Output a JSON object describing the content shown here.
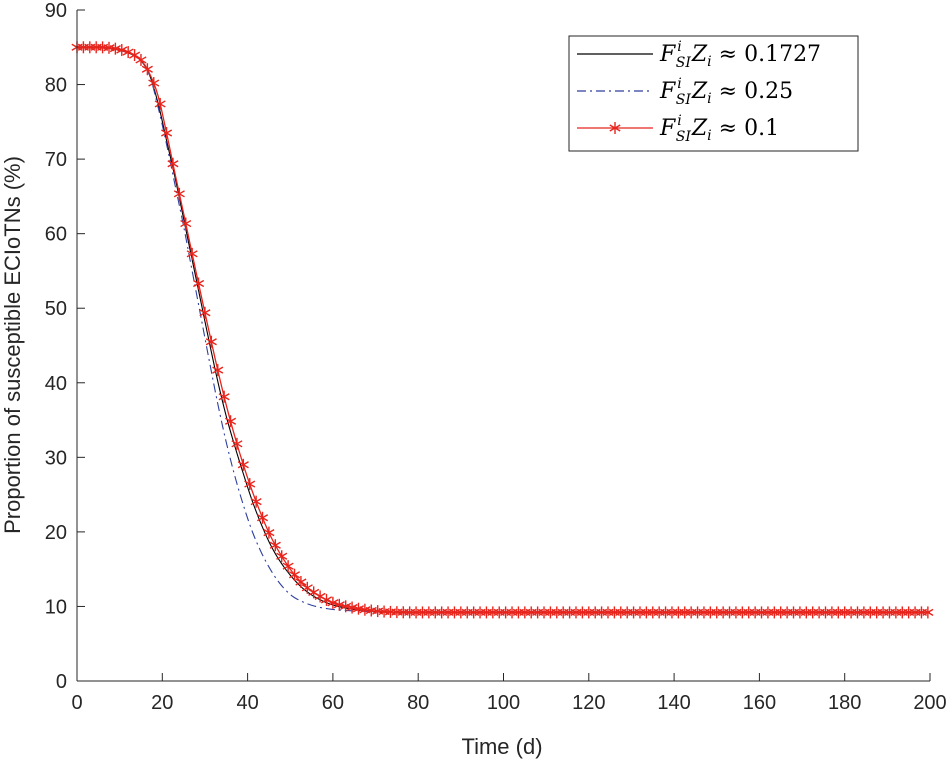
{
  "chart_data": {
    "type": "line",
    "xlabel": "Time (d)",
    "ylabel": "Proportion of susceptible ECIoTNs (%)",
    "xlim": [
      0,
      200
    ],
    "ylim": [
      0,
      90
    ],
    "xticks": [
      0,
      20,
      40,
      60,
      80,
      100,
      120,
      140,
      160,
      180,
      200
    ],
    "yticks": [
      0,
      10,
      20,
      30,
      40,
      50,
      60,
      70,
      80,
      90
    ],
    "grid": false,
    "legend_position": "top-right",
    "series": [
      {
        "name": "F_SI^i Z_i ≈ 0.1727",
        "legend_parts": {
          "F": "F",
          "sup": "i",
          "sub": "SI",
          "Z": "Z",
          "zsub": "i",
          "op": "≈",
          "value": "0.1727"
        },
        "color": "#000000",
        "style": "solid",
        "marker": "none",
        "x": [
          0,
          5,
          10,
          13,
          15,
          17,
          19,
          21,
          23,
          25,
          27,
          29,
          31,
          33,
          35,
          37,
          39,
          41,
          43,
          45,
          47,
          50,
          53,
          56,
          60,
          65,
          70,
          80,
          100,
          120,
          140,
          160,
          180,
          200
        ],
        "y": [
          85,
          85,
          84.6,
          84,
          83.2,
          81.3,
          77.5,
          72.5,
          67.5,
          62,
          56.5,
          51,
          45.5,
          40.2,
          35.5,
          31.5,
          27.8,
          24.3,
          21.3,
          18.7,
          16.6,
          14.2,
          12.4,
          11.2,
          10.2,
          9.6,
          9.3,
          9.2,
          9.2,
          9.2,
          9.2,
          9.2,
          9.2,
          9.2
        ]
      },
      {
        "name": "F_SI^i Z_i ≈ 0.25",
        "legend_parts": {
          "F": "F",
          "sup": "i",
          "sub": "SI",
          "Z": "Z",
          "zsub": "i",
          "op": "≈",
          "value": "0.25"
        },
        "color": "#2e3f9e",
        "style": "dashdot",
        "marker": "none",
        "x": [
          0,
          5,
          10,
          13,
          15,
          17,
          19,
          21,
          23,
          25,
          27,
          29,
          31,
          33,
          35,
          37,
          39,
          41,
          43,
          45,
          47,
          50,
          53,
          56,
          60,
          65,
          70,
          80,
          100,
          120,
          140,
          160,
          180,
          200
        ],
        "y": [
          85,
          85,
          84.6,
          84,
          83.2,
          81.3,
          77,
          72,
          66.5,
          61,
          55,
          49,
          43,
          37.2,
          32,
          27.5,
          23.6,
          20.2,
          17.5,
          15.3,
          13.5,
          11.6,
          10.6,
          10,
          9.6,
          9.4,
          9.3,
          9.2,
          9.2,
          9.2,
          9.2,
          9.2,
          9.2,
          9.2
        ]
      },
      {
        "name": "F_SI^i Z_i ≈ 0.1",
        "legend_parts": {
          "F": "F",
          "sup": "i",
          "sub": "SI",
          "Z": "Z",
          "zsub": "i",
          "op": "≈",
          "value": "0.1"
        },
        "color": "#e8241c",
        "style": "solid",
        "marker": "asterisk",
        "x": [
          0,
          5,
          10,
          13,
          15,
          17,
          19,
          21,
          23,
          25,
          27,
          29,
          31,
          33,
          35,
          37,
          39,
          41,
          43,
          45,
          47,
          50,
          53,
          56,
          60,
          65,
          70,
          80,
          100,
          120,
          140,
          160,
          180,
          200
        ],
        "y": [
          85,
          85,
          84.7,
          84.1,
          83.3,
          81.5,
          78.5,
          73.5,
          68,
          62.7,
          57.3,
          52,
          46.8,
          41.7,
          37,
          32.8,
          29,
          25.6,
          22.6,
          19.9,
          17.7,
          15,
          13,
          11.7,
          10.5,
          9.8,
          9.4,
          9.2,
          9.2,
          9.2,
          9.2,
          9.2,
          9.2,
          9.2
        ]
      }
    ]
  }
}
